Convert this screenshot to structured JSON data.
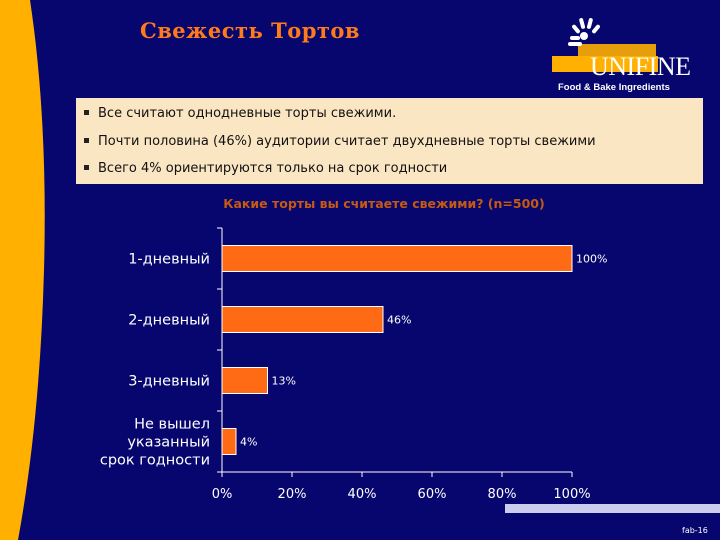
{
  "slide": {
    "title": "Свежесть Тортов",
    "page_number": "fab-16"
  },
  "logo": {
    "brand": "UNIFINE",
    "tagline": "Food & Bake Ingredients"
  },
  "bullets": [
    "Все считают однодневные торты свежими.",
    "Почти половина (46%) аудитории считает двухдневные торты свежими",
    "Всего 4% ориентируются только на срок годности"
  ],
  "colors": {
    "background": "#06066e",
    "accent": "#ff7a1a",
    "bar": "#ff6a14",
    "panel": "#fbe6c4",
    "stripe": "#ffb000"
  },
  "chart_data": {
    "type": "bar",
    "orientation": "horizontal",
    "title": "Какие торты вы считаете свежими? (n=500)",
    "categories": [
      [
        "1-дневный"
      ],
      [
        "2-дневный"
      ],
      [
        "3-дневный"
      ],
      [
        "Не вышел",
        "указанный",
        "срок годности"
      ]
    ],
    "values": [
      100,
      46,
      13,
      4
    ],
    "value_labels": [
      "100%",
      "46%",
      "13%",
      "4%"
    ],
    "xlim": [
      0,
      100
    ],
    "x_ticks": [
      0,
      20,
      40,
      60,
      80,
      100
    ],
    "x_tick_labels": [
      "0%",
      "20%",
      "40%",
      "60%",
      "80%",
      "100%"
    ],
    "grid": false,
    "legend": false
  }
}
